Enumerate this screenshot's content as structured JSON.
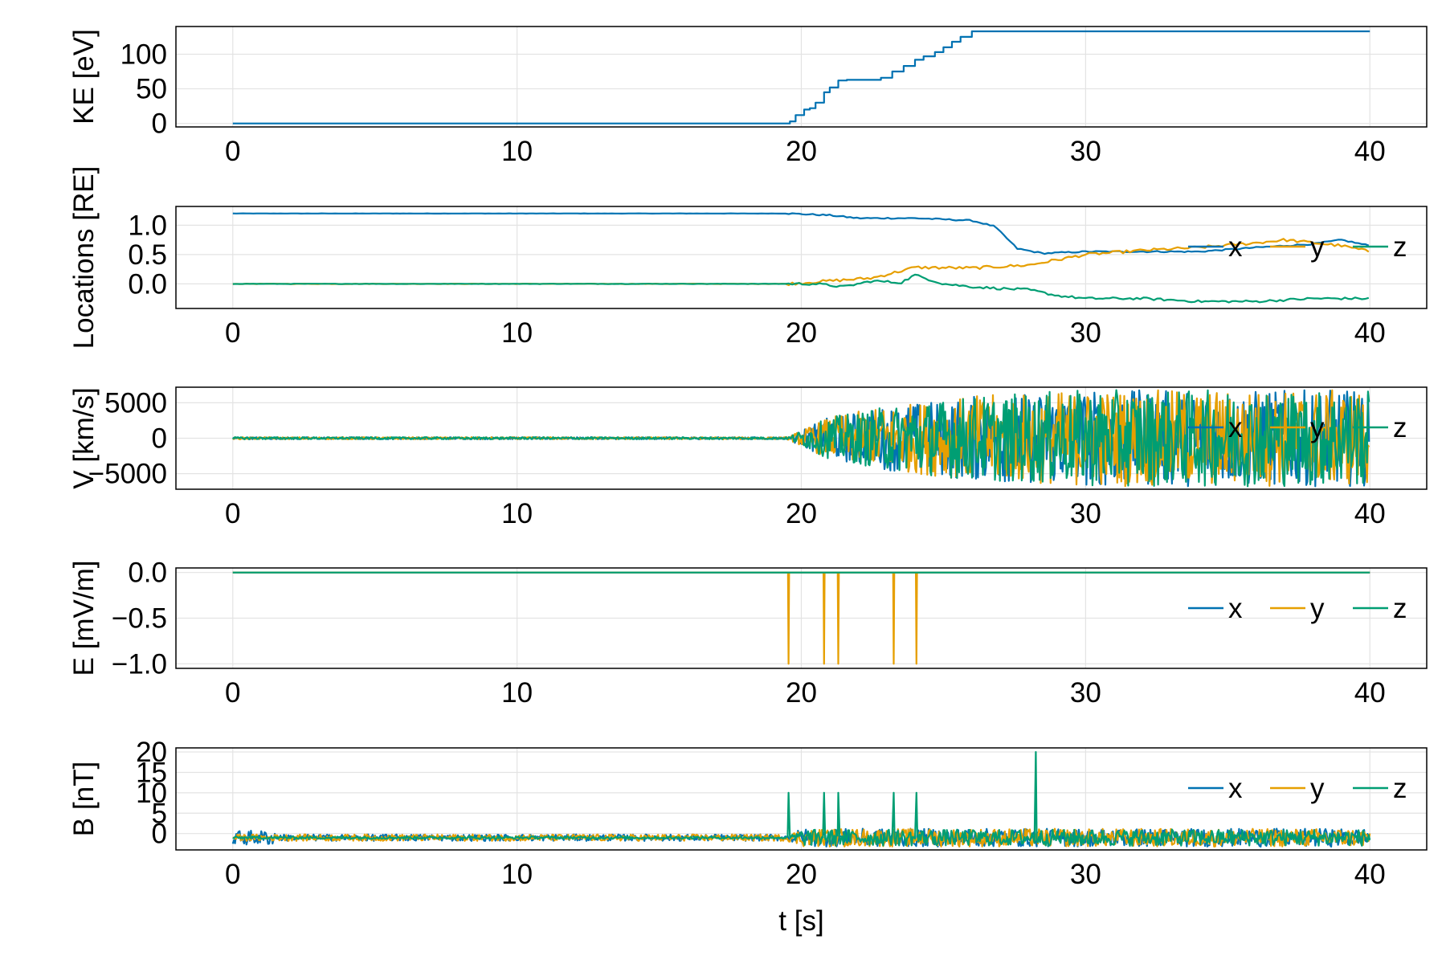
{
  "colors": {
    "x": "#0072b2",
    "y": "#e69f00",
    "z": "#009e73",
    "grid": "#e3e3e3",
    "frame": "#000000"
  },
  "chart_data": [
    {
      "type": "line",
      "ylabel": "KE [eV]",
      "xlabel": "",
      "xlim": [
        -2,
        42
      ],
      "ylim": [
        -5,
        140
      ],
      "xticks": [
        0,
        10,
        20,
        30,
        40
      ],
      "yticks": [
        0,
        50,
        100
      ],
      "ytick_labels": [
        "0",
        "50",
        "100"
      ],
      "grid": true,
      "legend": null,
      "series": [
        {
          "color_key": "x",
          "kind": "step",
          "x": [
            0,
            19.5,
            19.6,
            19.8,
            20.1,
            20.3,
            20.5,
            20.8,
            21.0,
            21.3,
            21.6,
            22.0,
            22.8,
            23.2,
            23.6,
            24.0,
            24.3,
            24.7,
            25.0,
            25.3,
            25.6,
            26.0,
            40
          ],
          "y": [
            0,
            0,
            3,
            12,
            20,
            22,
            30,
            45,
            52,
            62,
            63,
            63,
            66,
            75,
            83,
            92,
            97,
            103,
            110,
            118,
            125,
            133,
            133
          ]
        }
      ]
    },
    {
      "type": "line",
      "ylabel": "Locations [RE]",
      "xlabel": "",
      "xlim": [
        -2,
        42
      ],
      "ylim": [
        -0.42,
        1.32
      ],
      "xticks": [
        0,
        10,
        20,
        30,
        40
      ],
      "yticks": [
        0.0,
        0.5,
        1.0
      ],
      "ytick_labels": [
        "0.0",
        "0.5",
        "1.0"
      ],
      "grid": true,
      "legend": "right",
      "series": [
        {
          "name": "x",
          "color_key": "x",
          "kind": "noisy",
          "x": [
            0,
            19.5,
            21,
            22,
            24,
            26,
            26.8,
            27.6,
            28.5,
            30,
            32,
            34,
            36,
            38,
            39,
            40
          ],
          "y": [
            1.2,
            1.2,
            1.17,
            1.12,
            1.12,
            1.08,
            0.98,
            0.6,
            0.52,
            0.55,
            0.55,
            0.55,
            0.62,
            0.68,
            0.75,
            0.65
          ],
          "noise": 0.012
        },
        {
          "name": "y",
          "color_key": "y",
          "kind": "noisy",
          "x": [
            0,
            19.5,
            21,
            22.5,
            24,
            26,
            28,
            30,
            32,
            34,
            36,
            37,
            38,
            39,
            40
          ],
          "y": [
            0.0,
            0.0,
            0.05,
            0.1,
            0.28,
            0.27,
            0.32,
            0.5,
            0.57,
            0.62,
            0.7,
            0.75,
            0.7,
            0.65,
            0.55
          ],
          "noise": 0.025
        },
        {
          "name": "z",
          "color_key": "z",
          "kind": "noisy",
          "x": [
            0,
            19.5,
            20.5,
            21.5,
            22.5,
            23.5,
            24,
            25,
            26,
            27,
            28,
            29,
            30,
            32,
            34,
            36,
            38,
            40
          ],
          "y": [
            0.0,
            0.0,
            0.0,
            -0.05,
            0.05,
            0.02,
            0.15,
            0.0,
            -0.05,
            -0.08,
            -0.1,
            -0.2,
            -0.25,
            -0.25,
            -0.3,
            -0.3,
            -0.25,
            -0.25
          ],
          "noise": 0.02
        }
      ]
    },
    {
      "type": "line",
      "ylabel": "V [km/s]",
      "xlabel": "",
      "xlim": [
        -2,
        42
      ],
      "ylim": [
        -7200,
        7200
      ],
      "xticks": [
        0,
        10,
        20,
        30,
        40
      ],
      "yticks": [
        -5000,
        0,
        5000
      ],
      "ytick_labels": [
        "−5000",
        "0",
        "5000"
      ],
      "grid": true,
      "legend": "right",
      "series": [
        {
          "name": "x",
          "color_key": "x",
          "kind": "envelope",
          "amp_x": [
            0,
            19.5,
            21,
            23,
            26,
            30,
            40
          ],
          "amp": [
            150,
            150,
            3000,
            4500,
            6000,
            6800,
            6800
          ]
        },
        {
          "name": "y",
          "color_key": "y",
          "kind": "envelope",
          "amp_x": [
            0,
            19.5,
            21,
            23,
            26,
            30,
            40
          ],
          "amp": [
            150,
            150,
            3000,
            4500,
            6000,
            6800,
            6800
          ]
        },
        {
          "name": "z",
          "color_key": "z",
          "kind": "envelope",
          "amp_x": [
            0,
            19.5,
            21,
            23,
            26,
            30,
            40
          ],
          "amp": [
            150,
            150,
            3000,
            4500,
            6000,
            6800,
            6800
          ]
        }
      ]
    },
    {
      "type": "line",
      "ylabel": "E [mV/m]",
      "xlabel": "",
      "xlim": [
        -2,
        42
      ],
      "ylim": [
        -1.05,
        0.05
      ],
      "xticks": [
        0,
        10,
        20,
        30,
        40
      ],
      "yticks": [
        -1.0,
        -0.5,
        0.0
      ],
      "ytick_labels": [
        "−1.0",
        "−0.5",
        "0.0"
      ],
      "grid": true,
      "legend": "right",
      "series": [
        {
          "name": "x",
          "color_key": "x",
          "kind": "flat",
          "value": 0
        },
        {
          "name": "y",
          "color_key": "y",
          "kind": "spikes",
          "value": 0,
          "spike_x": [
            19.55,
            20.8,
            21.3,
            23.25,
            24.05
          ],
          "spike_y": -1.0
        },
        {
          "name": "z",
          "color_key": "z",
          "kind": "flat",
          "value": 0
        }
      ]
    },
    {
      "type": "line",
      "ylabel": "B [nT]",
      "xlabel": "t [s]",
      "xlim": [
        -2,
        42
      ],
      "ylim": [
        -4,
        21
      ],
      "xticks": [
        0,
        10,
        20,
        30,
        40
      ],
      "yticks": [
        0,
        5,
        10,
        15,
        20
      ],
      "ytick_labels": [
        "0",
        "5",
        "10",
        "15",
        "20"
      ],
      "grid": true,
      "legend": "right",
      "series": [
        {
          "name": "x",
          "color_key": "x",
          "kind": "bnoise",
          "base": -1,
          "amp_x": [
            0,
            1.5,
            1.6,
            19.5,
            20,
            40
          ],
          "amp": [
            1.8,
            1.8,
            0.8,
            0.8,
            2.2,
            2.2
          ]
        },
        {
          "name": "y",
          "color_key": "y",
          "kind": "bnoise",
          "base": -1,
          "amp_x": [
            0,
            19.5,
            20,
            40
          ],
          "amp": [
            0.8,
            0.8,
            2.2,
            2.2
          ]
        },
        {
          "name": "z",
          "color_key": "z",
          "kind": "bnoise",
          "base": -1,
          "amp_x": [
            0,
            19.5,
            20,
            40
          ],
          "amp": [
            0.3,
            0.3,
            2.0,
            2.0
          ],
          "spike_x": [
            19.55,
            20.8,
            21.3,
            23.25,
            24.05,
            28.25
          ],
          "spike_y": [
            10,
            10,
            10,
            10,
            10,
            20
          ]
        }
      ]
    }
  ]
}
